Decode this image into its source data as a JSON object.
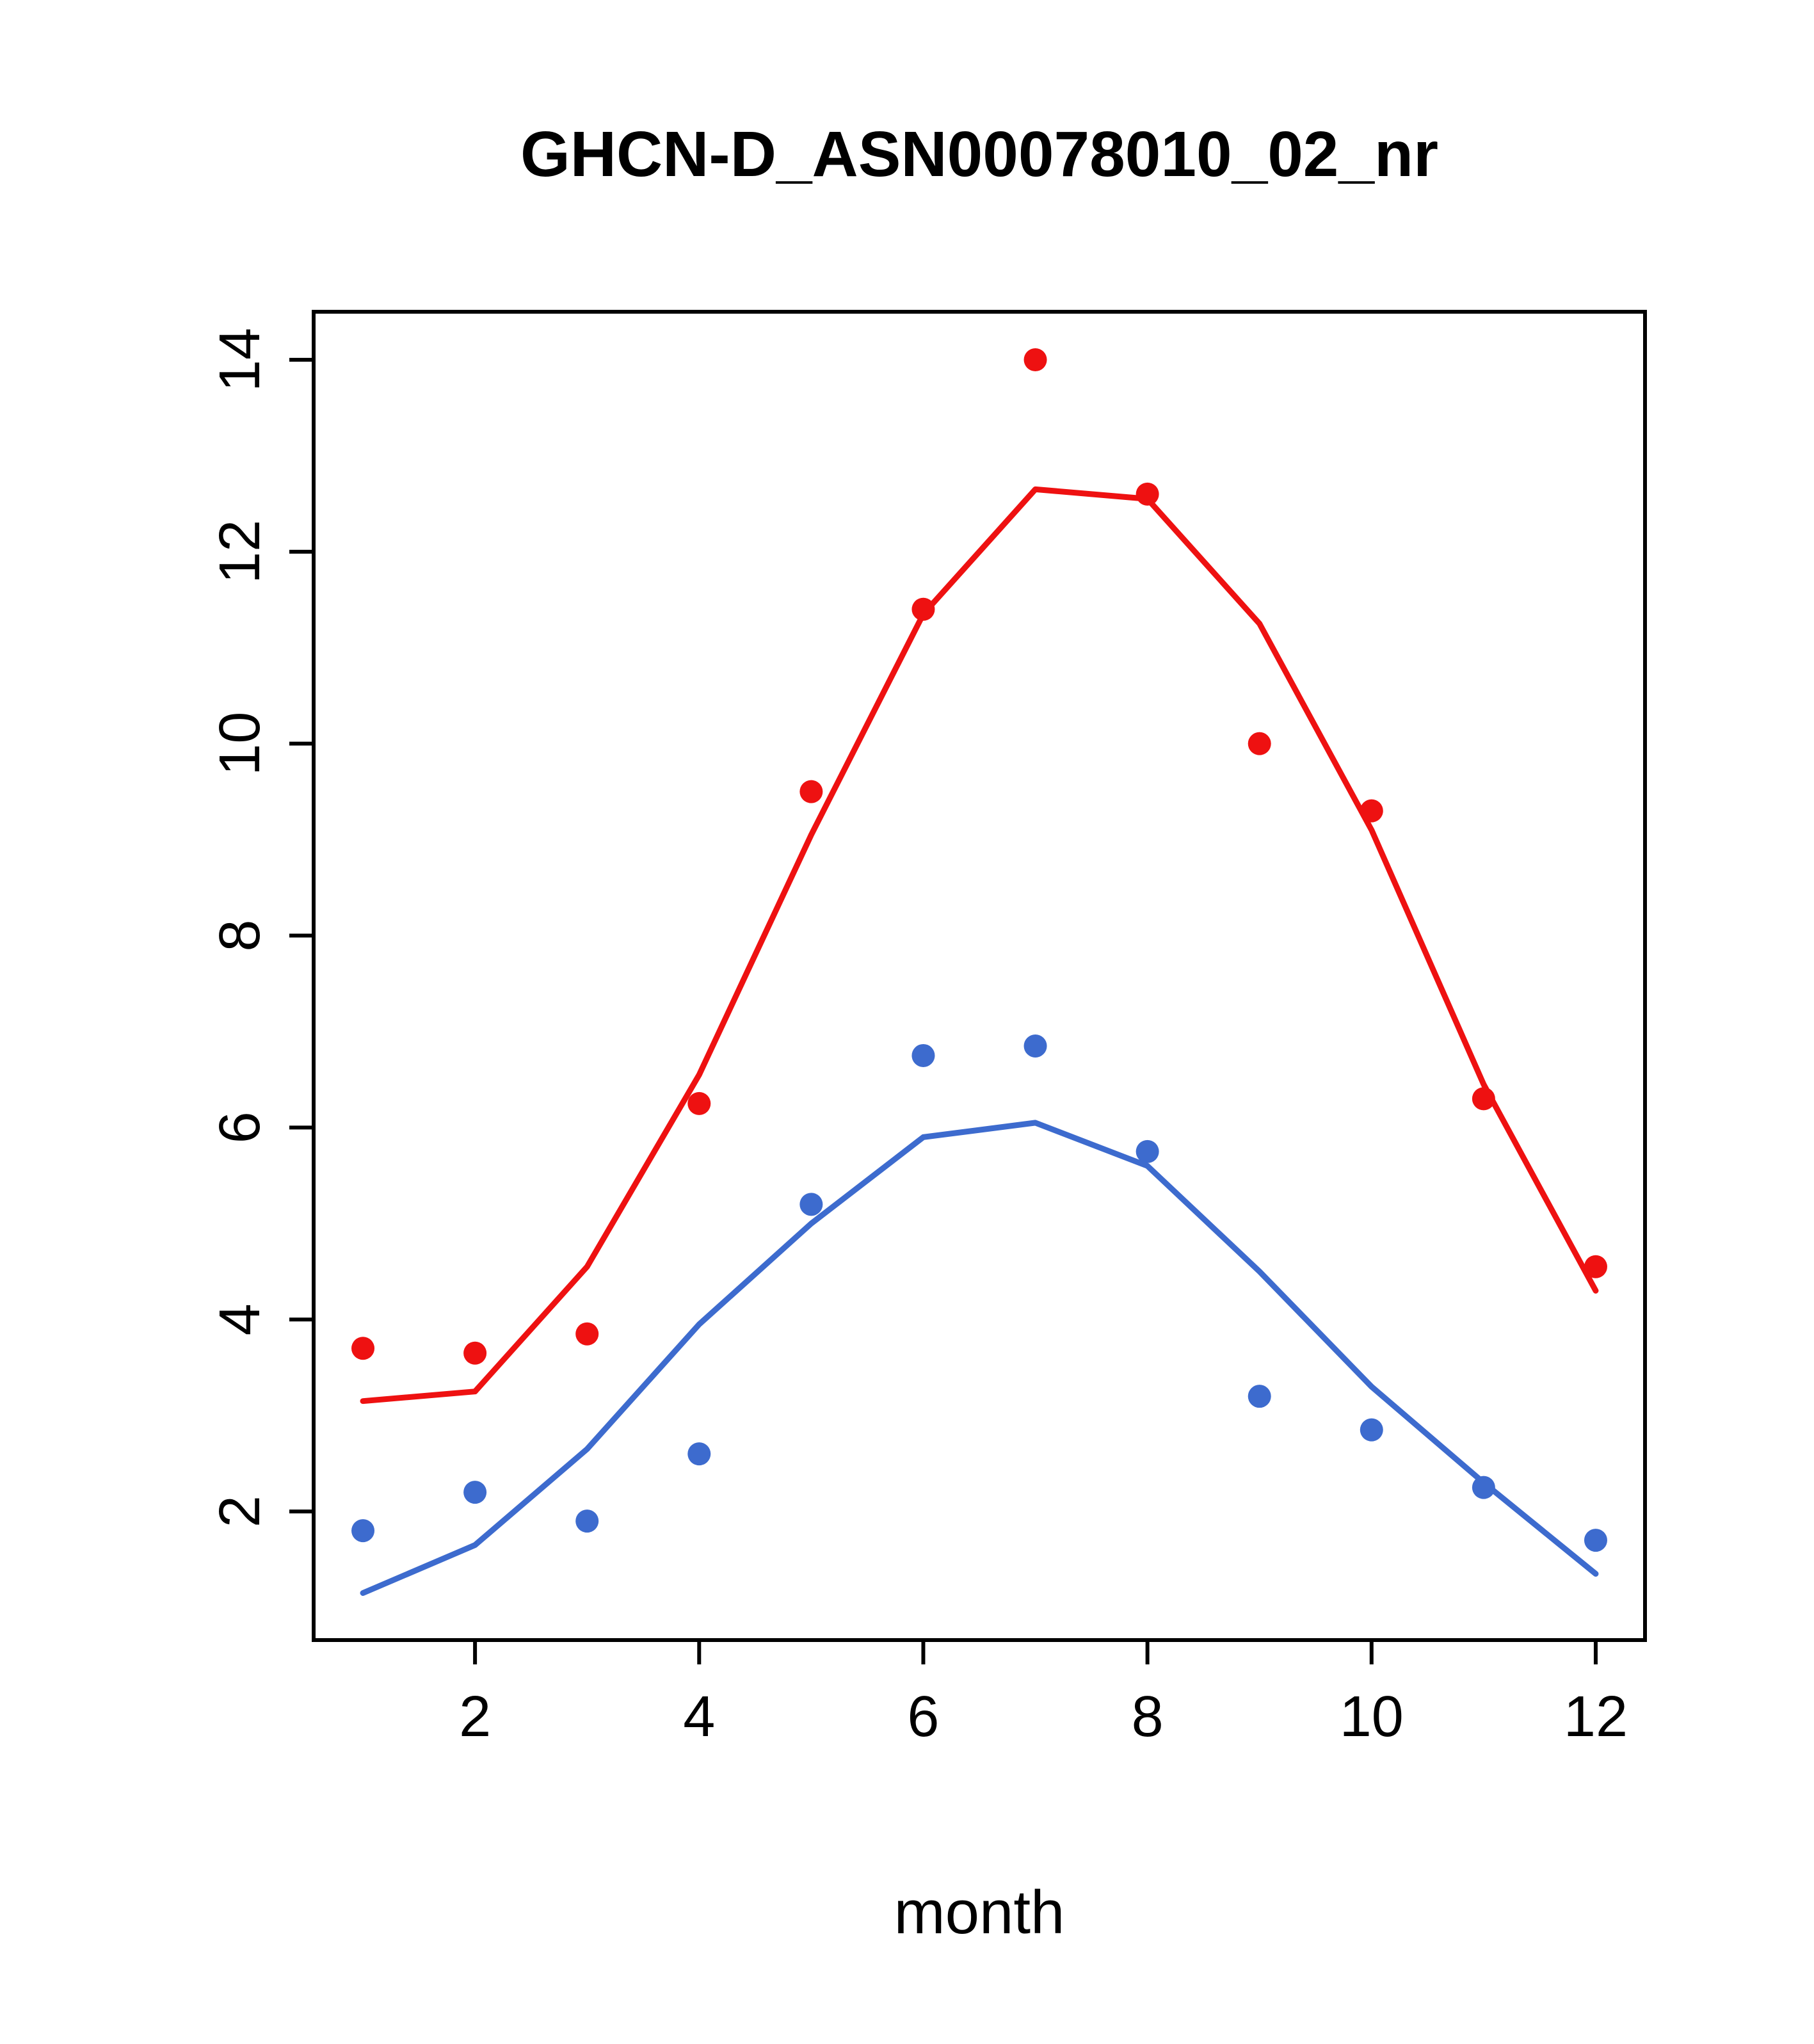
{
  "chart_data": {
    "type": "scatter",
    "title": "GHCN-D_ASN00078010_02_nr",
    "xlabel": "month",
    "ylabel": "",
    "x": [
      1,
      2,
      3,
      4,
      5,
      6,
      7,
      8,
      9,
      10,
      11,
      12
    ],
    "x_ticks": [
      2,
      4,
      6,
      8,
      10,
      12
    ],
    "y_ticks": [
      2,
      4,
      6,
      8,
      10,
      12,
      14
    ],
    "xlim": [
      0.56,
      12.44
    ],
    "ylim": [
      0.66,
      14.5
    ],
    "grid": false,
    "legend": "none",
    "colors": {
      "red": "#ee1111",
      "blue": "#3d6bce"
    },
    "series": [
      {
        "name": "red-smooth-line",
        "kind": "line",
        "color": "#ee1111",
        "values": [
          3.15,
          3.25,
          4.55,
          6.55,
          9.05,
          11.35,
          12.65,
          12.55,
          11.25,
          9.1,
          6.45,
          4.3
        ]
      },
      {
        "name": "blue-smooth-line",
        "kind": "line",
        "color": "#3d6bce",
        "values": [
          1.15,
          1.65,
          2.65,
          3.95,
          5.0,
          5.9,
          6.05,
          5.6,
          4.5,
          3.3,
          2.3,
          1.35
        ]
      },
      {
        "name": "red-points",
        "kind": "points",
        "color": "#ee1111",
        "values": [
          3.7,
          3.65,
          3.85,
          6.25,
          9.5,
          11.4,
          14.0,
          12.6,
          10.0,
          9.3,
          6.3,
          4.55
        ]
      },
      {
        "name": "blue-points",
        "kind": "points",
        "color": "#3d6bce",
        "values": [
          1.8,
          2.2,
          1.9,
          2.6,
          5.2,
          6.75,
          6.85,
          5.75,
          3.2,
          2.85,
          2.25,
          1.7
        ]
      }
    ]
  }
}
